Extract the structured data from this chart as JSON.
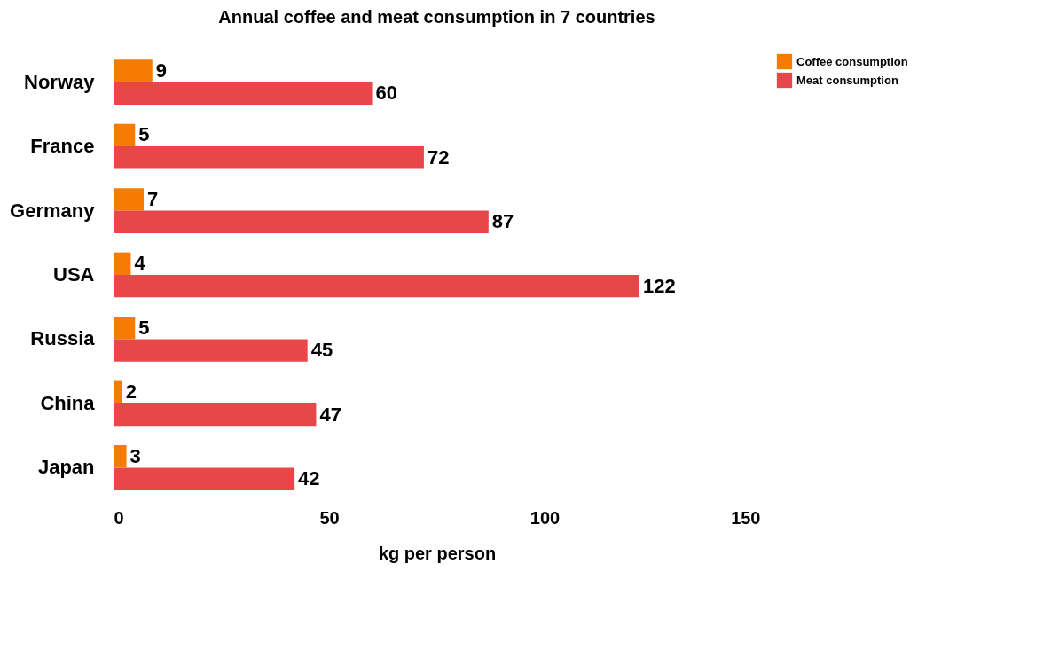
{
  "chart_data": {
    "type": "bar",
    "orientation": "horizontal",
    "title": "Annual coffee and meat consumption in 7 countries",
    "xlabel": "kg per person",
    "categories": [
      "Norway",
      "France",
      "Germany",
      "USA",
      "Russia",
      "China",
      "Japan"
    ],
    "series": [
      {
        "name": "Coffee consumption",
        "color": "#f57c00",
        "values": [
          9,
          5,
          7,
          4,
          5,
          2,
          3
        ]
      },
      {
        "name": "Meat consumption",
        "color": "#e8474a",
        "values": [
          60,
          72,
          87,
          122,
          45,
          47,
          42
        ]
      }
    ],
    "xlim": [
      0,
      150
    ],
    "xticks": [
      0,
      50,
      100,
      150
    ],
    "data_labels": true,
    "legend": "right",
    "grid": false
  }
}
